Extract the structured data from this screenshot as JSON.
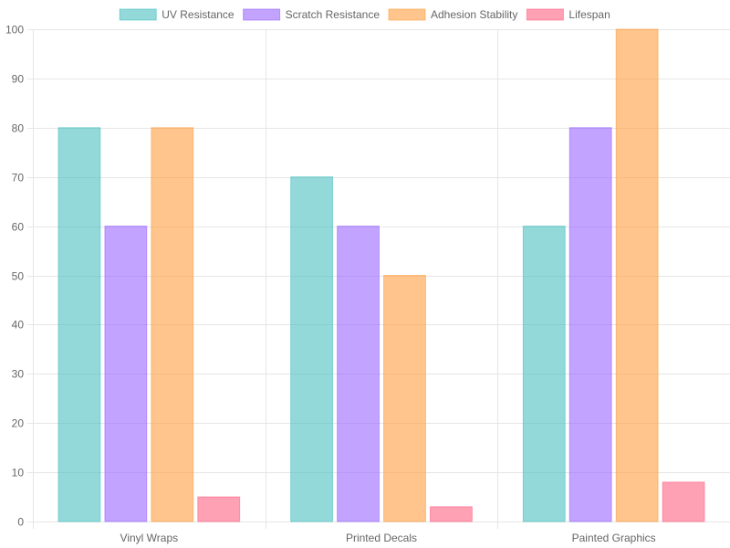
{
  "chart_data": {
    "type": "bar",
    "title": "",
    "xlabel": "",
    "ylabel": "",
    "categories": [
      "Vinyl Wraps",
      "Printed Decals",
      "Painted Graphics"
    ],
    "series": [
      {
        "name": "UV Resistance",
        "values": [
          80,
          70,
          60
        ],
        "color": "#4BC0C0"
      },
      {
        "name": "Scratch Resistance",
        "values": [
          60,
          60,
          80
        ],
        "color": "#9966FF"
      },
      {
        "name": "Adhesion Stability",
        "values": [
          80,
          50,
          100
        ],
        "color": "#FF9F40"
      },
      {
        "name": "Lifespan",
        "values": [
          5,
          3,
          8
        ],
        "color": "#FF6384"
      }
    ],
    "ylim": [
      0,
      100
    ],
    "yticks": [
      0,
      10,
      20,
      30,
      40,
      50,
      60,
      70,
      80,
      90,
      100
    ],
    "legend_position": "top-center",
    "grid": true
  }
}
